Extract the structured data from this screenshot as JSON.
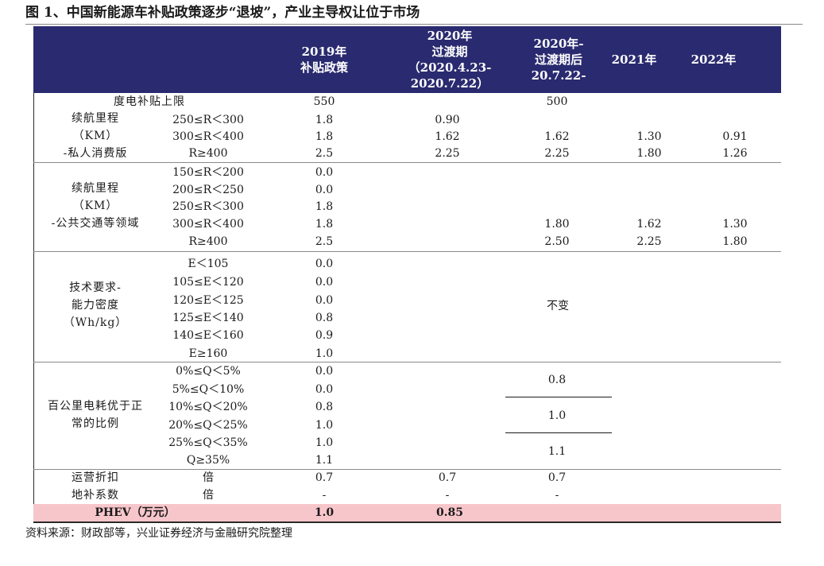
{
  "title": "图 1、中国新能源车补贴政策逐步“退坡”，产业主导权让位于市场",
  "header": {
    "col2019": [
      "2019年",
      "补贴政策"
    ],
    "col2020a": [
      "2020年",
      "过渡期",
      "（2020.4.23-",
      "2020.7.22）"
    ],
    "col2020b": [
      "2020年-",
      "过渡期后",
      "20.7.22-"
    ],
    "col2021": "2021年",
    "col2022": "2022年"
  },
  "row_cap": {
    "label": "度电补贴上限",
    "v2019": "550",
    "v2020b": "500"
  },
  "row_private": {
    "label": [
      "续航里程",
      "（KM）",
      "-私人消费版"
    ],
    "ranges": [
      "250≤R＜300",
      "300≤R＜400",
      "R≥400"
    ],
    "v2019": [
      "1.8",
      "1.8",
      "2.5"
    ],
    "v2020a": [
      "0.90",
      "1.62",
      "2.25"
    ],
    "v2020b": [
      "1.62",
      "2.25"
    ],
    "v2021": [
      "1.30",
      "1.80"
    ],
    "v2022": [
      "0.91",
      "1.26"
    ]
  },
  "row_public": {
    "label": [
      "续航里程",
      "（KM）",
      "-公共交通等领域"
    ],
    "ranges": [
      "150≤R＜200",
      "200≤R＜250",
      "250≤R＜300",
      "300≤R＜400",
      "R≥400"
    ],
    "v2019": [
      "0.0",
      "0.0",
      "1.8",
      "1.8",
      "2.5"
    ],
    "v2020b": [
      "1.80",
      "2.50"
    ],
    "v2021": [
      "1.62",
      "2.25"
    ],
    "v2022": [
      "1.30",
      "1.80"
    ]
  },
  "row_energy": {
    "label": [
      "技术要求-",
      "能力密度",
      "（Wh/kg）"
    ],
    "ranges": [
      "E＜105",
      "105≤E＜120",
      "120≤E＜125",
      "125≤E＜140",
      "140≤E＜160",
      "E≥160"
    ],
    "v2019": [
      "0.0",
      "0.0",
      "0.0",
      "0.8",
      "0.9",
      "1.0"
    ],
    "unchanged": "不变"
  },
  "row_consumption": {
    "label": [
      "百公里电耗优于正",
      "常的比例"
    ],
    "ranges": [
      "0%≤Q＜5%",
      "5%≤Q＜10%",
      "10%≤Q＜20%",
      "20%≤Q＜25%",
      "25%≤Q＜35%",
      "Q≥35%"
    ],
    "v2019": [
      "0.0",
      "0.0",
      "0.8",
      "1.0",
      "1.0",
      "1.1"
    ],
    "v2020b": [
      "0.8",
      "1.0",
      "1.1"
    ]
  },
  "row_ops": {
    "label": [
      "运营折扣",
      "地补系数"
    ],
    "unit": [
      "倍",
      "倍"
    ],
    "v2019": [
      "0.7",
      "-"
    ],
    "v2020a": [
      "0.7",
      "-"
    ],
    "v2020b": [
      "0.7",
      "-"
    ]
  },
  "row_phev": {
    "label": "PHEV（万元）",
    "v2019": "1.0",
    "v2020a": "0.85"
  },
  "source": "资料来源：财政部等，兴业证券经济与金融研究院整理"
}
